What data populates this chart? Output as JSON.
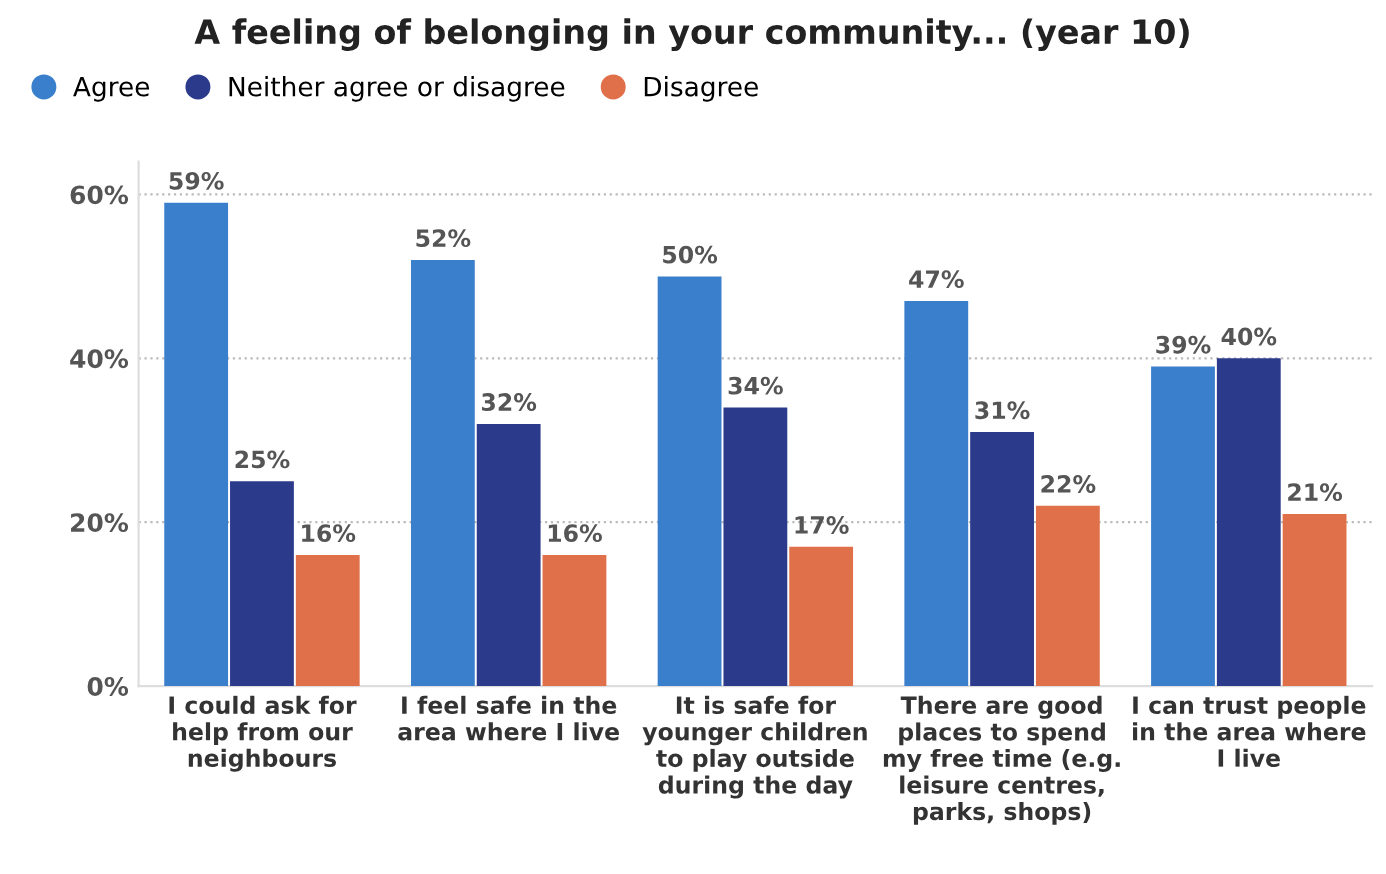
{
  "chart_data": {
    "type": "bar",
    "title": "A feeling of belonging in your community... (year 10)",
    "categories": [
      "I could ask for\nhelp from our\nneighbours",
      "I feel safe in the\narea where I live",
      "It is safe for\nyounger children\nto play outside\nduring the day",
      "There are good\nplaces to spend\nmy free time (e.g.\nleisure centres,\nparks, shops)",
      "I can trust people\nin the area where\nI live"
    ],
    "series": [
      {
        "name": "Agree",
        "color": "#3a7fcc",
        "values": [
          59,
          52,
          50,
          47,
          39
        ],
        "value_labels": [
          "59%",
          "52%",
          "50%",
          "47%",
          "39%"
        ]
      },
      {
        "name": "Neither agree or disagree",
        "color": "#2b3a8a",
        "values": [
          25,
          32,
          34,
          31,
          40
        ],
        "value_labels": [
          "25%",
          "32%",
          "34%",
          "31%",
          "40%"
        ]
      },
      {
        "name": "Disagree",
        "color": "#e0704a",
        "values": [
          16,
          16,
          17,
          22,
          21
        ],
        "value_labels": [
          "16%",
          "16%",
          "17%",
          "22%",
          "21%"
        ]
      }
    ],
    "ylim": [
      0,
      64
    ],
    "yticks": [
      {
        "value": 0,
        "label": "0%"
      },
      {
        "value": 20,
        "label": "20%"
      },
      {
        "value": 40,
        "label": "40%"
      },
      {
        "value": 60,
        "label": "60%"
      }
    ],
    "grid": "y",
    "legend": "top left"
  }
}
